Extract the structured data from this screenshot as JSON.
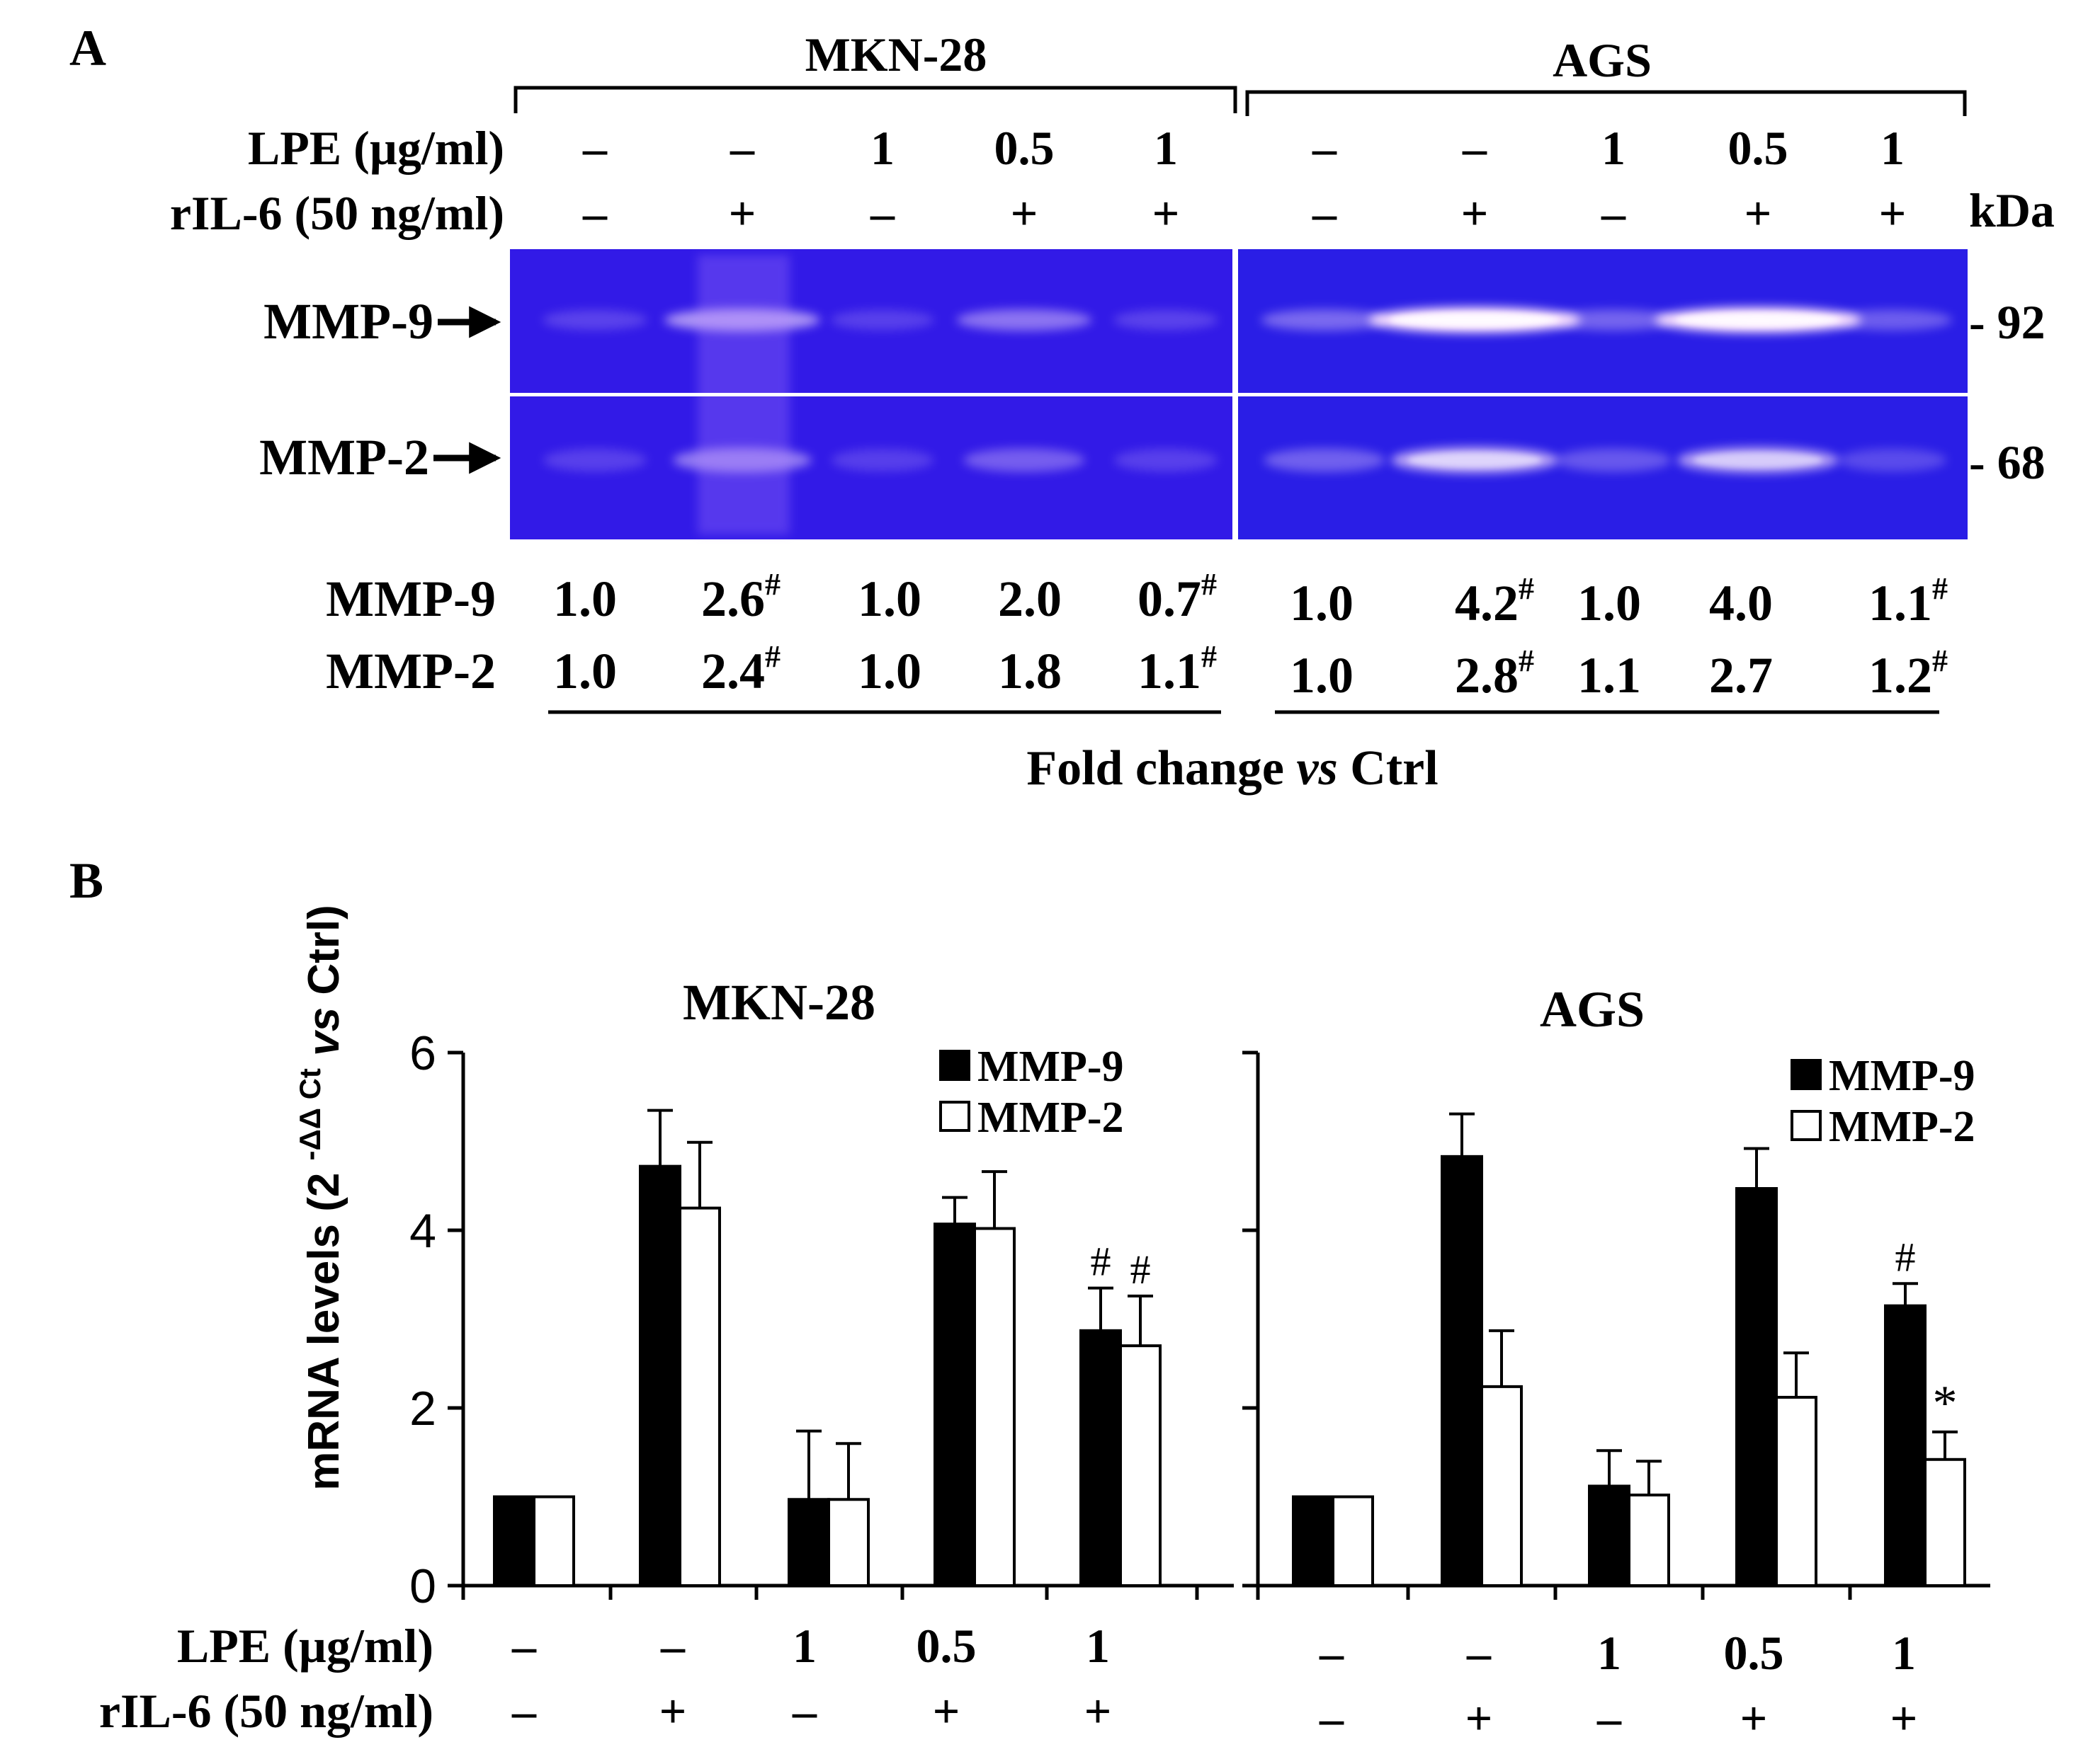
{
  "panels": {
    "a": "A",
    "b": "B"
  },
  "panel_a": {
    "groups": [
      "MKN-28",
      "AGS"
    ],
    "lpe_label": "LPE (µg/ml)",
    "ril6_label": "rIL-6 (50 ng/ml)",
    "lpe_values": [
      "–",
      "–",
      "1",
      "0.5",
      "1"
    ],
    "ril6_values": [
      "–",
      "+",
      "–",
      "+",
      "+"
    ],
    "kda_label": "kDa",
    "bands": [
      "MMP-9",
      "MMP-2"
    ],
    "markers": [
      "- 92",
      "- 68"
    ],
    "quant_rows": [
      {
        "label": "MMP-9",
        "mkn": [
          {
            "v": "1.0",
            "s": ""
          },
          {
            "v": "2.6",
            "s": "#"
          },
          {
            "v": "1.0",
            "s": ""
          },
          {
            "v": "2.0",
            "s": ""
          },
          {
            "v": "0.7",
            "s": "#"
          }
        ],
        "ags": [
          {
            "v": "1.0",
            "s": ""
          },
          {
            "v": "4.2",
            "s": "#"
          },
          {
            "v": "1.0",
            "s": ""
          },
          {
            "v": "4.0",
            "s": ""
          },
          {
            "v": "1.1",
            "s": "#"
          }
        ]
      },
      {
        "label": "MMP-2",
        "mkn": [
          {
            "v": "1.0",
            "s": ""
          },
          {
            "v": "2.4",
            "s": "#"
          },
          {
            "v": "1.0",
            "s": ""
          },
          {
            "v": "1.8",
            "s": ""
          },
          {
            "v": "1.1",
            "s": "#"
          }
        ],
        "ags": [
          {
            "v": "1.0",
            "s": ""
          },
          {
            "v": "2.8",
            "s": "#"
          },
          {
            "v": "1.1",
            "s": ""
          },
          {
            "v": "2.7",
            "s": ""
          },
          {
            "v": "1.2",
            "s": "#"
          }
        ]
      }
    ],
    "fold_label": {
      "pre": "Fold change ",
      "ital": "vs",
      "post": " Ctrl"
    },
    "band_intensity": {
      "mkn": {
        "mmp9": [
          0.05,
          0.5,
          0.04,
          0.32,
          0.05
        ],
        "mmp2": [
          0.04,
          0.35,
          0.03,
          0.2,
          0.04
        ]
      },
      "ags": {
        "mmp9": [
          0.25,
          1.0,
          0.22,
          0.95,
          0.18
        ],
        "mmp2": [
          0.2,
          0.6,
          0.15,
          0.55,
          0.08
        ]
      }
    },
    "colors": {
      "gel": "#2a1ee6",
      "band": "#ffe6ff"
    }
  },
  "chart_data": [
    {
      "type": "bar",
      "title": "MKN-28",
      "ylabel": "mRNA levels (2 -ΔΔ Ct vs Ctrl)",
      "ylim": [
        0,
        6
      ],
      "yticks": [
        "0",
        "2",
        "4",
        "6"
      ],
      "x_rows": {
        "LPE (µg/ml)": [
          "–",
          "–",
          "1",
          "0.5",
          "1"
        ],
        "rIL-6 (50 ng/ml)": [
          "–",
          "+",
          "–",
          "+",
          "+"
        ]
      },
      "legend_position": "top-right",
      "series": [
        {
          "name": "MMP-9",
          "fill": "black",
          "values": [
            1.0,
            4.72,
            0.97,
            4.07,
            2.87
          ],
          "errors": [
            0,
            0.63,
            0.77,
            0.3,
            0.48
          ],
          "annotations": [
            "",
            "",
            "",
            "",
            "#"
          ]
        },
        {
          "name": "MMP-2",
          "fill": "white",
          "values": [
            1.0,
            4.25,
            0.97,
            4.02,
            2.7
          ],
          "errors": [
            0,
            0.74,
            0.63,
            0.64,
            0.56
          ],
          "annotations": [
            "",
            "",
            "",
            "",
            "#"
          ]
        }
      ]
    },
    {
      "type": "bar",
      "title": "AGS",
      "ylim": [
        0,
        6
      ],
      "x_rows": {
        "LPE (µg/ml)": [
          "–",
          "–",
          "1",
          "0.5",
          "1"
        ],
        "rIL-6 (50 ng/ml)": [
          "–",
          "+",
          "–",
          "+",
          "+"
        ]
      },
      "legend_position": "top-right",
      "series": [
        {
          "name": "MMP-9",
          "fill": "black",
          "values": [
            1.0,
            4.83,
            1.12,
            4.47,
            3.15
          ],
          "errors": [
            0,
            0.48,
            0.4,
            0.45,
            0.25
          ],
          "annotations": [
            "",
            "",
            "",
            "",
            "#"
          ]
        },
        {
          "name": "MMP-2",
          "fill": "white",
          "values": [
            1.0,
            2.24,
            1.02,
            2.12,
            1.42
          ],
          "errors": [
            0,
            0.63,
            0.38,
            0.5,
            0.31
          ],
          "annotations": [
            "",
            "",
            "",
            "",
            "*"
          ]
        }
      ]
    }
  ]
}
